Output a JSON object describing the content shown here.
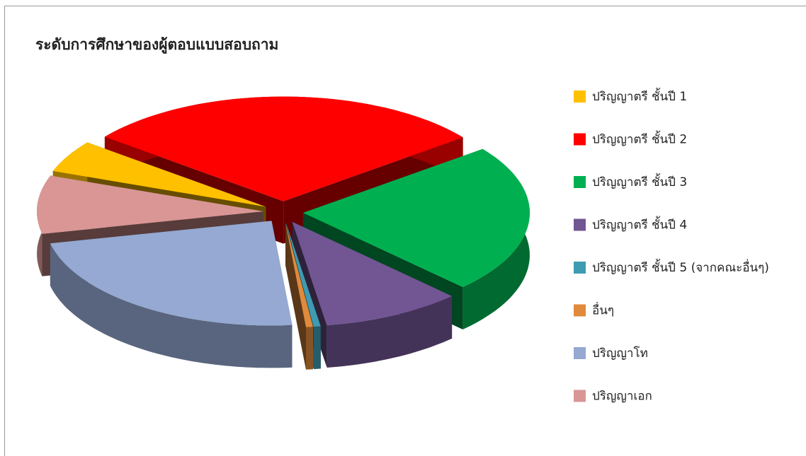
{
  "chart_data": {
    "type": "pie",
    "title": "ระดับการศึกษาของผู้ตอบแบบสอบถาม",
    "categories": [
      "ปริญญาตรี ชั้นปี 1",
      "ปริญญาตรี ชั้นปี 2",
      "ปริญญาตรี ชั้นปี 3",
      "ปริญญาตรี ชั้นปี 4",
      "ปริญญาตรี ชั้นปี 5 (จากคณะอื่นๆ)",
      "อื่นๆ",
      "ปริญญาโท",
      "ปริญญาเอก"
    ],
    "values": [
      5,
      29,
      23,
      10,
      0.5,
      0.5,
      23,
      9
    ],
    "colors": [
      "#FFC000",
      "#FF0000",
      "#00B050",
      "#725593",
      "#3E9BB1",
      "#E08A3C",
      "#95A9D2",
      "#D99694"
    ],
    "legend": "right"
  }
}
